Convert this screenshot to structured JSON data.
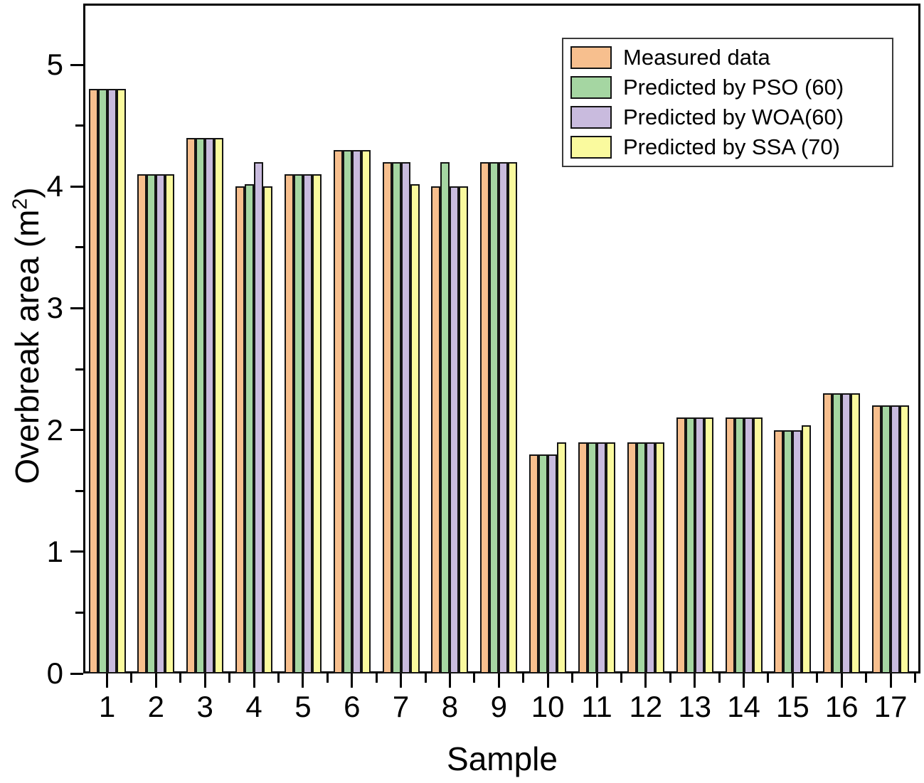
{
  "figure": {
    "xlabel": "Sample",
    "ylabel": "Overbreak area (m²)",
    "ylabel_parts": {
      "prefix": "Overbreak area (m",
      "sup": "2",
      "suffix": ")"
    }
  },
  "chart_data": {
    "type": "bar",
    "title": "",
    "xlabel": "Sample",
    "ylabel": "Overbreak area (m²)",
    "categories": [
      "1",
      "2",
      "3",
      "4",
      "5",
      "6",
      "7",
      "8",
      "9",
      "10",
      "11",
      "12",
      "13",
      "14",
      "15",
      "16",
      "17"
    ],
    "y_ticks": [
      0,
      1,
      2,
      3,
      4,
      5
    ],
    "y_minor_step": 0.5,
    "ylim": [
      0,
      5.5
    ],
    "grid": false,
    "legend_position": "top-right",
    "bar_border_color": "#141414",
    "series": [
      {
        "name": "Measured data",
        "color": "#F7BF8E",
        "values": [
          4.8,
          4.1,
          4.4,
          4.0,
          4.1,
          4.3,
          4.2,
          4.0,
          4.2,
          1.8,
          1.9,
          1.9,
          2.1,
          2.1,
          2.0,
          2.3,
          2.2
        ]
      },
      {
        "name": "Predicted by PSO (60)",
        "color": "#A5D6A2",
        "values": [
          4.8,
          4.1,
          4.4,
          4.02,
          4.1,
          4.3,
          4.2,
          4.2,
          4.2,
          1.8,
          1.9,
          1.9,
          2.1,
          2.1,
          2.0,
          2.3,
          2.2
        ]
      },
      {
        "name": "Predicted by WOA(60)",
        "color": "#C9BBDE",
        "values": [
          4.8,
          4.1,
          4.4,
          4.2,
          4.1,
          4.3,
          4.2,
          4.0,
          4.2,
          1.8,
          1.9,
          1.9,
          2.1,
          2.1,
          2.0,
          2.3,
          2.2
        ]
      },
      {
        "name": "Predicted by SSA (70)",
        "color": "#FAFA9E",
        "values": [
          4.8,
          4.1,
          4.4,
          4.0,
          4.1,
          4.3,
          4.02,
          4.0,
          4.2,
          1.9,
          1.9,
          1.9,
          2.1,
          2.1,
          2.04,
          2.3,
          2.2
        ]
      }
    ]
  }
}
